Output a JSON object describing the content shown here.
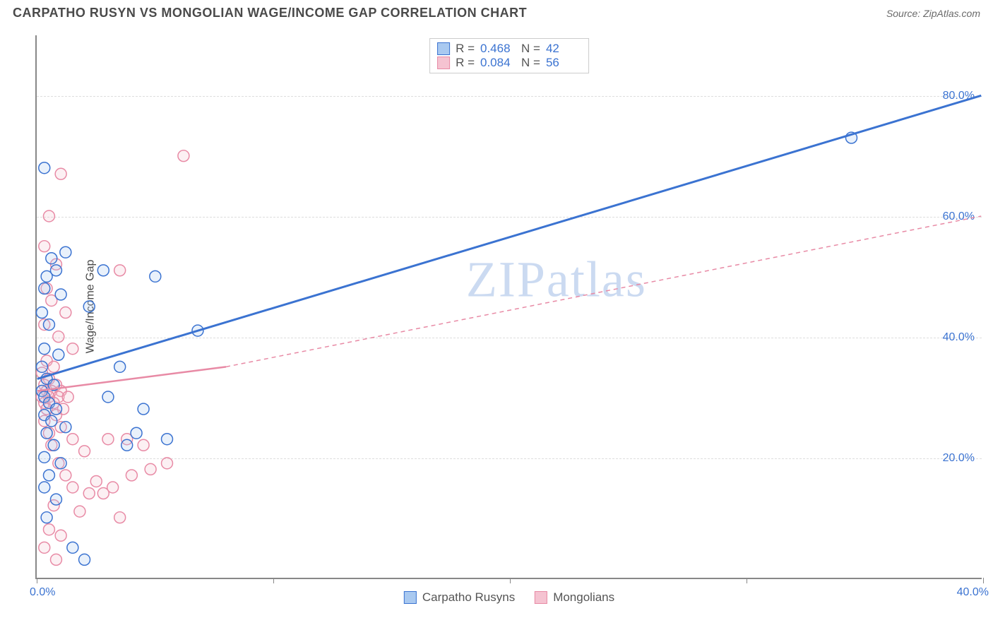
{
  "header": {
    "title": "CARPATHO RUSYN VS MONGOLIAN WAGE/INCOME GAP CORRELATION CHART",
    "source": "Source: ZipAtlas.com"
  },
  "chart": {
    "type": "scatter",
    "ylabel": "Wage/Income Gap",
    "watermark": "ZIPatlas",
    "background_color": "#ffffff",
    "axis_color": "#888888",
    "grid_color": "#dddddd",
    "grid_dash": "4,4",
    "xlim": [
      0,
      40
    ],
    "ylim": [
      0,
      90
    ],
    "xticks": [
      0,
      10,
      20,
      30,
      40
    ],
    "xtick_labels": [
      "0.0%",
      "",
      "",
      "",
      "40.0%"
    ],
    "yticks": [
      20,
      40,
      60,
      80
    ],
    "ytick_labels": [
      "20.0%",
      "40.0%",
      "60.0%",
      "80.0%"
    ],
    "marker_radius": 8,
    "marker_stroke_width": 1.5,
    "marker_fill_opacity": 0.25,
    "series": [
      {
        "name": "Carpatho Rusyns",
        "color_stroke": "#3b73d1",
        "color_fill": "#a9c9f0",
        "r_value": "0.468",
        "n_value": "42",
        "trend": {
          "x1": 0,
          "y1": 33,
          "x2": 40,
          "y2": 80,
          "width": 3,
          "dash": "none"
        },
        "points": [
          [
            0.3,
            68
          ],
          [
            0.6,
            53
          ],
          [
            1.2,
            54
          ],
          [
            0.4,
            50
          ],
          [
            0.8,
            51
          ],
          [
            0.3,
            48
          ],
          [
            1.0,
            47
          ],
          [
            0.2,
            44
          ],
          [
            0.5,
            42
          ],
          [
            0.3,
            38
          ],
          [
            0.9,
            37
          ],
          [
            0.2,
            35
          ],
          [
            0.4,
            33
          ],
          [
            0.7,
            32
          ],
          [
            0.2,
            31
          ],
          [
            0.3,
            30
          ],
          [
            0.5,
            29
          ],
          [
            0.8,
            28
          ],
          [
            0.3,
            27
          ],
          [
            0.6,
            26
          ],
          [
            1.2,
            25
          ],
          [
            0.4,
            24
          ],
          [
            0.7,
            22
          ],
          [
            0.3,
            20
          ],
          [
            1.0,
            19
          ],
          [
            0.5,
            17
          ],
          [
            0.3,
            15
          ],
          [
            0.8,
            13
          ],
          [
            0.4,
            10
          ],
          [
            1.5,
            5
          ],
          [
            2.0,
            3
          ],
          [
            2.8,
            51
          ],
          [
            5.0,
            50
          ],
          [
            3.5,
            35
          ],
          [
            3.0,
            30
          ],
          [
            4.5,
            28
          ],
          [
            6.8,
            41
          ],
          [
            3.8,
            22
          ],
          [
            5.5,
            23
          ],
          [
            4.2,
            24
          ],
          [
            34.5,
            73
          ],
          [
            2.2,
            45
          ]
        ]
      },
      {
        "name": "Mongolians",
        "color_stroke": "#e88aa5",
        "color_fill": "#f5c3d1",
        "r_value": "0.084",
        "n_value": "56",
        "trend_solid": {
          "x1": 0,
          "y1": 31,
          "x2": 8,
          "y2": 35,
          "width": 2.5
        },
        "trend_dashed": {
          "x1": 8,
          "y1": 35,
          "x2": 40,
          "y2": 60,
          "width": 1.5,
          "dash": "6,5"
        },
        "points": [
          [
            1.0,
            67
          ],
          [
            0.5,
            60
          ],
          [
            6.2,
            70
          ],
          [
            0.3,
            55
          ],
          [
            0.8,
            52
          ],
          [
            3.5,
            51
          ],
          [
            0.4,
            48
          ],
          [
            0.6,
            46
          ],
          [
            1.2,
            44
          ],
          [
            0.3,
            42
          ],
          [
            0.9,
            40
          ],
          [
            1.5,
            38
          ],
          [
            0.4,
            36
          ],
          [
            0.7,
            35
          ],
          [
            0.2,
            34
          ],
          [
            0.5,
            33
          ],
          [
            0.8,
            32
          ],
          [
            0.3,
            32
          ],
          [
            1.0,
            31
          ],
          [
            0.4,
            31
          ],
          [
            0.6,
            31
          ],
          [
            0.2,
            30
          ],
          [
            0.9,
            30
          ],
          [
            1.3,
            30
          ],
          [
            0.5,
            30
          ],
          [
            0.3,
            29
          ],
          [
            0.7,
            29
          ],
          [
            1.1,
            28
          ],
          [
            0.4,
            28
          ],
          [
            0.8,
            27
          ],
          [
            0.3,
            26
          ],
          [
            1.0,
            25
          ],
          [
            0.5,
            24
          ],
          [
            1.5,
            23
          ],
          [
            0.6,
            22
          ],
          [
            2.0,
            21
          ],
          [
            3.0,
            23
          ],
          [
            3.8,
            23
          ],
          [
            4.5,
            22
          ],
          [
            5.5,
            19
          ],
          [
            0.9,
            19
          ],
          [
            1.2,
            17
          ],
          [
            2.5,
            16
          ],
          [
            3.2,
            15
          ],
          [
            1.5,
            15
          ],
          [
            2.8,
            14
          ],
          [
            0.7,
            12
          ],
          [
            1.8,
            11
          ],
          [
            2.2,
            14
          ],
          [
            3.5,
            10
          ],
          [
            0.5,
            8
          ],
          [
            1.0,
            7
          ],
          [
            0.3,
            5
          ],
          [
            0.8,
            3
          ],
          [
            4.0,
            17
          ],
          [
            4.8,
            18
          ]
        ]
      }
    ],
    "stats_box": {
      "r_label": "R =",
      "n_label": "N ="
    },
    "bottom_legend": [
      "Carpatho Rusyns",
      "Mongolians"
    ]
  }
}
